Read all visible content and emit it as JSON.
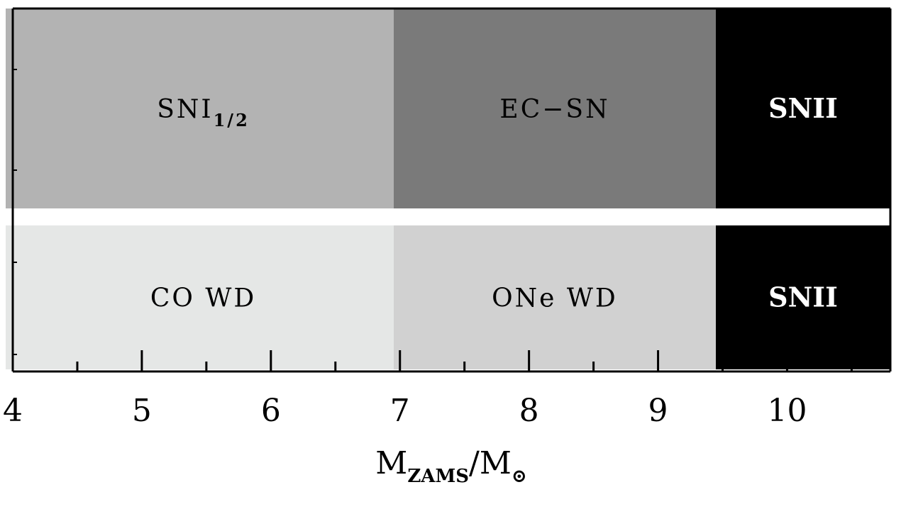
{
  "diagram": {
    "x_axis": {
      "range": [
        4,
        10.8
      ],
      "major_ticks": [
        4,
        5,
        6,
        7,
        8,
        9,
        10
      ],
      "minor_ticks": [
        4.5,
        5.5,
        6.5,
        7.5,
        8.5,
        9.5,
        10.5
      ],
      "tick_labels": [
        "4",
        "5",
        "6",
        "7",
        "8",
        "9",
        "10"
      ],
      "label_main": "M",
      "label_sub": "ZAMS",
      "label_slash": "/",
      "label_main2": "M",
      "label_sun_symbol": "⊙"
    },
    "rows": [
      {
        "segments": [
          {
            "from": 4,
            "to": 6.95,
            "color": "#b3b3b3",
            "text_color": "#000000",
            "label": "SNI",
            "label_sub": "1/2",
            "bold": false
          },
          {
            "from": 6.95,
            "to": 9.45,
            "color": "#7a7a7a",
            "text_color": "#000000",
            "label": "EC−SN",
            "label_sub": "",
            "bold": false
          },
          {
            "from": 9.45,
            "to": 10.8,
            "color": "#000000",
            "text_color": "#ffffff",
            "label": "SNII",
            "label_sub": "",
            "bold": true
          }
        ]
      },
      {
        "segments": [
          {
            "from": 4,
            "to": 6.95,
            "color": "#e5e7e6",
            "text_color": "#000000",
            "label": "CO WD",
            "label_sub": "",
            "bold": false
          },
          {
            "from": 6.95,
            "to": 9.45,
            "color": "#d1d1d1",
            "text_color": "#000000",
            "label": "ONe WD",
            "label_sub": "",
            "bold": false
          },
          {
            "from": 9.45,
            "to": 10.8,
            "color": "#000000",
            "text_color": "#ffffff",
            "label": "SNII",
            "label_sub": "",
            "bold": true
          }
        ]
      }
    ]
  }
}
